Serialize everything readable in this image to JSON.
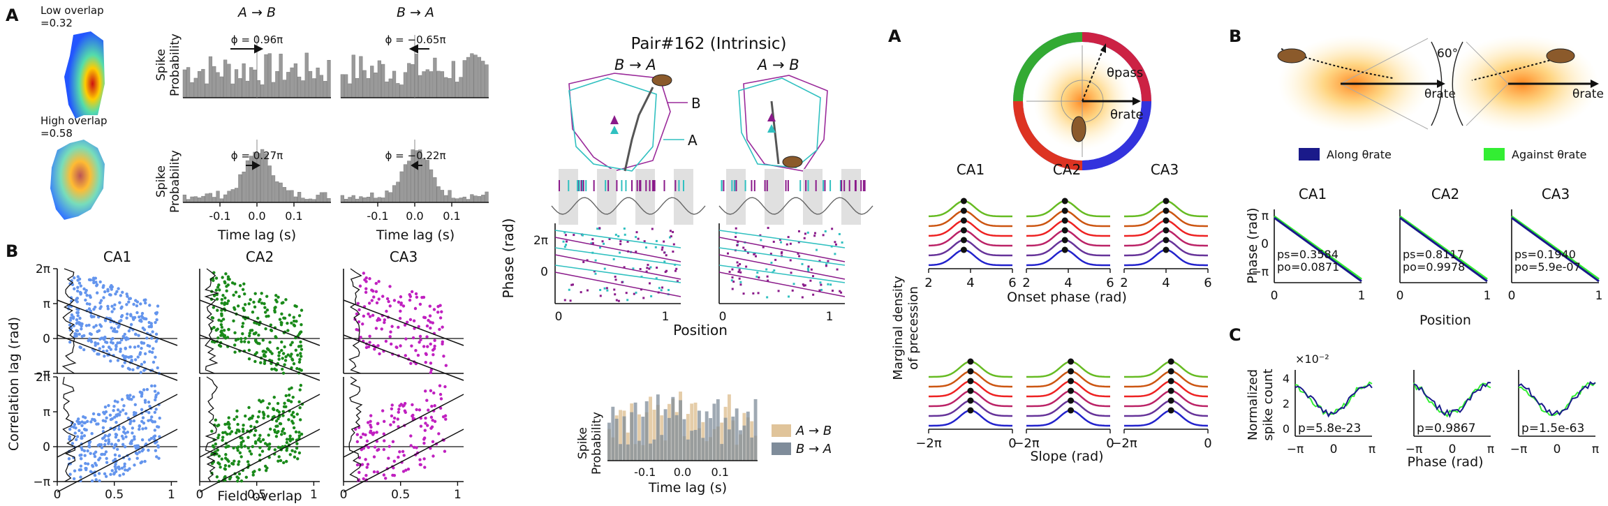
{
  "figure_left": {
    "panel_a": {
      "letter": "A",
      "low_overlap_label": "Low overlap",
      "low_overlap_value": "=0.32",
      "high_overlap_label": "High overlap",
      "high_overlap_value": "=0.58",
      "col_ab": "A → B",
      "col_ba": "B → A",
      "ylabel_line1": "Spike",
      "ylabel_line2": "Probability",
      "phi_top_ab": "ϕ = 0.96π",
      "phi_top_ba": "ϕ = −0.65π",
      "phi_bot_ab": "ϕ = 0.27π",
      "phi_bot_ba": "ϕ = −0.22π",
      "xticks": [
        "-0.1",
        "0.0",
        "0.1"
      ],
      "xlabel": "Time lag (s)"
    },
    "panel_b": {
      "letter": "B",
      "regions": [
        "CA1",
        "CA2",
        "CA3"
      ],
      "colors": {
        "CA1": "#6495ED",
        "CA2": "#1a8a1a",
        "CA3": "#c020c0"
      },
      "yticks": [
        "2π",
        "π",
        "0",
        "−π"
      ],
      "xticks": [
        "0",
        "0.5",
        "1"
      ],
      "ylabel": "Correlation lag (rad)",
      "xlabel": "Field overlap"
    },
    "pair_panel": {
      "title": "Pair#162 (Intrinsic)",
      "dir_left": "B → A",
      "dir_right": "A → B",
      "label_b": "B",
      "label_a": "A",
      "phase_ylabel": "Phase (rad)",
      "phase_yticks": [
        "2π",
        "0"
      ],
      "pos_xticks": [
        "0",
        "1"
      ],
      "pos_xlabel": "Position",
      "hist_ylabel_line1": "Spike",
      "hist_ylabel_line2": "Probability",
      "hist_xticks": [
        "-0.1",
        "0.0",
        "0.1"
      ],
      "hist_xlabel": "Time lag (s)",
      "legend": [
        {
          "label": "A → B",
          "color": "#e0c49a"
        },
        {
          "label": "B → A",
          "color": "#7f8c9a"
        }
      ]
    }
  },
  "figure_right": {
    "panel_a": {
      "letter": "A",
      "theta_pass": "θpass",
      "theta_rate": "θrate",
      "regions": [
        "CA1",
        "CA2",
        "CA3"
      ],
      "onset_xticks": [
        "2",
        "4",
        "6"
      ],
      "onset_xlabel": "Onset phase (rad)",
      "slope_xticks": [
        "−2π",
        "0"
      ],
      "slope_xlabel": "Slope (rad)",
      "ylabel_line1": "Marginal density",
      "ylabel_line2": "of precession",
      "curve_colors": [
        "#66bb22",
        "#cc5511",
        "#ee2222",
        "#bb2266",
        "#663399",
        "#2222cc"
      ]
    },
    "panel_b": {
      "letter": "B",
      "angle_label": "60°",
      "theta_rate": "θrate",
      "legend_along": "Along θrate",
      "legend_against": "Against θrate",
      "color_along": "#1a1a8a",
      "color_against": "#33ee33",
      "regions": [
        "CA1",
        "CA2",
        "CA3"
      ],
      "yticks": [
        "π",
        "0",
        "−π"
      ],
      "xticks": [
        "0",
        "1"
      ],
      "ylabel": "Phase (rad)",
      "xlabel": "Position",
      "stats": [
        {
          "ps": "ps=0.3584",
          "po": "po=0.0871"
        },
        {
          "ps": "ps=0.8117",
          "po": "po=0.9978"
        },
        {
          "ps": "ps=0.1940",
          "po": "po=5.9e-07"
        }
      ]
    },
    "panel_c": {
      "letter": "C",
      "scale": "×10⁻²",
      "yticks": [
        "4",
        "2",
        "0"
      ],
      "xticks": [
        "−π",
        "0",
        "π"
      ],
      "ylabel_line1": "Normalized",
      "ylabel_line2": "spike count",
      "xlabel": "Phase (rad)",
      "pvalues": [
        "p=5.8e-23",
        "p=0.9867",
        "p=1.5e-63"
      ]
    }
  }
}
